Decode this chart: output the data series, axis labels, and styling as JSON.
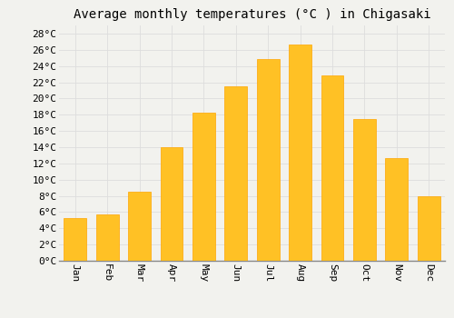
{
  "title": "Average monthly temperatures (°C ) in Chigasaki",
  "months": [
    "Jan",
    "Feb",
    "Mar",
    "Apr",
    "May",
    "Jun",
    "Jul",
    "Aug",
    "Sep",
    "Oct",
    "Nov",
    "Dec"
  ],
  "temperatures": [
    5.3,
    5.7,
    8.5,
    14.0,
    18.3,
    21.5,
    24.9,
    26.7,
    22.8,
    17.5,
    12.7,
    8.0
  ],
  "bar_color": "#FFC125",
  "bar_edge_color": "#FFA500",
  "background_color": "#F2F2EE",
  "grid_color": "#DDDDDD",
  "ylim": [
    0,
    29
  ],
  "yticks": [
    0,
    2,
    4,
    6,
    8,
    10,
    12,
    14,
    16,
    18,
    20,
    22,
    24,
    26,
    28
  ],
  "title_fontsize": 10,
  "tick_fontsize": 8,
  "font_family": "monospace"
}
